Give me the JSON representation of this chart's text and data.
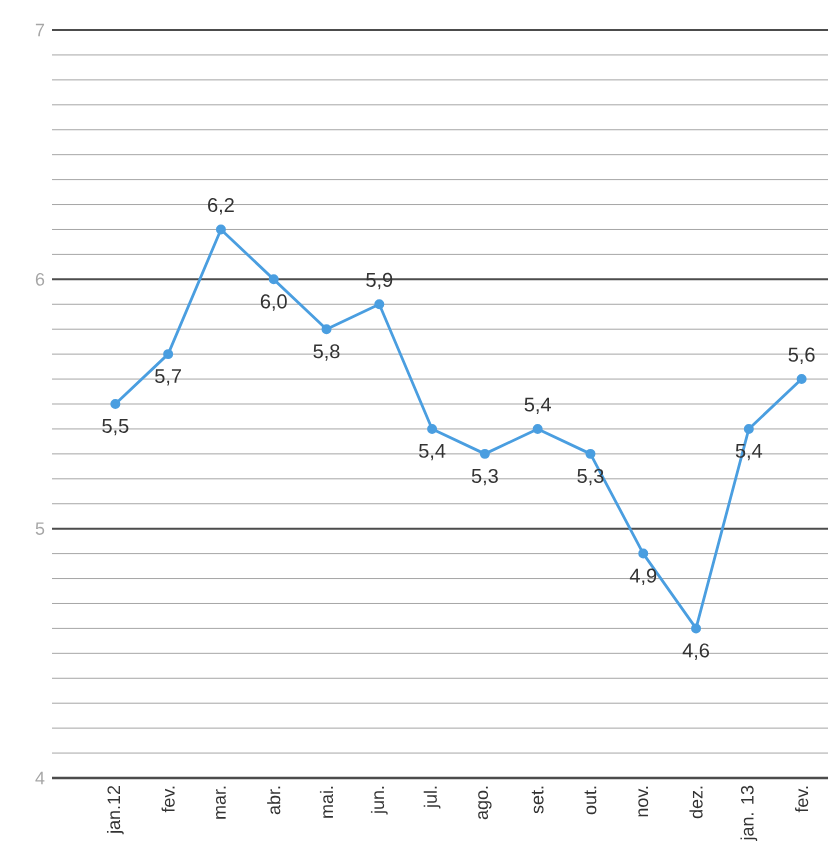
{
  "chart_data": {
    "type": "line",
    "categories": [
      "jan.12",
      "fev.",
      "mar.",
      "abr.",
      "mai.",
      "jun.",
      "jul.",
      "ago.",
      "set.",
      "out.",
      "nov.",
      "dez.",
      "jan. 13",
      "fev."
    ],
    "series": [
      {
        "color": "#4a9ee0",
        "values": [
          5.5,
          5.7,
          6.2,
          6.0,
          5.8,
          5.9,
          5.4,
          5.3,
          5.4,
          5.3,
          4.9,
          4.6,
          5.4,
          5.6
        ],
        "value_labels": [
          "5,5",
          "5,7",
          "6,2",
          "6,0",
          "5,8",
          "5,9",
          "5,4",
          "5,3",
          "5,4",
          "5,3",
          "4,9",
          "4,6",
          "5,4",
          "5,6"
        ]
      }
    ],
    "ylim": [
      4,
      7
    ],
    "yticks": [
      4,
      5,
      6,
      7
    ],
    "grid": "y",
    "marker": "circle",
    "line_style": "solid"
  }
}
